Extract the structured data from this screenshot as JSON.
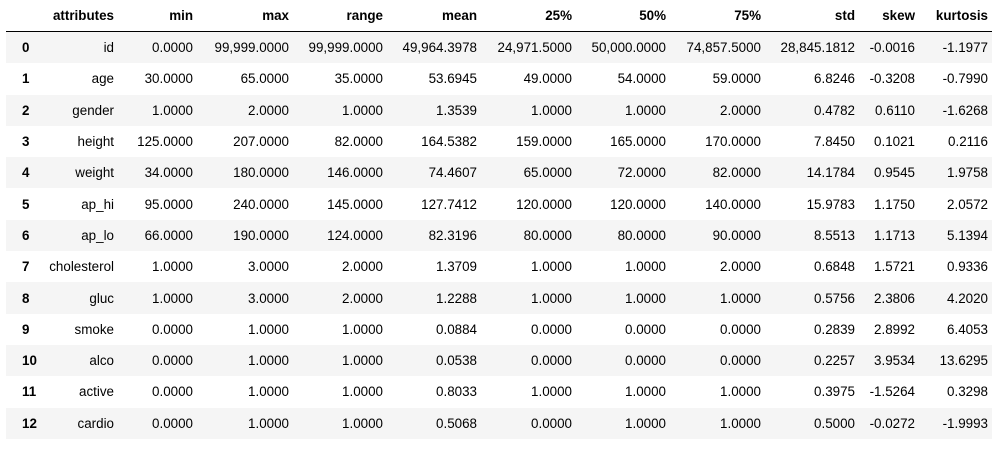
{
  "table": {
    "index_header": "",
    "headers": [
      "attributes",
      "min",
      "max",
      "range",
      "mean",
      "25%",
      "50%",
      "75%",
      "std",
      "skew",
      "kurtosis"
    ],
    "rows": [
      {
        "index": "0",
        "cells": [
          "id",
          "0.0000",
          "99,999.0000",
          "99,999.0000",
          "49,964.3978",
          "24,971.5000",
          "50,000.0000",
          "74,857.5000",
          "28,845.1812",
          "-0.0016",
          "-1.1977"
        ]
      },
      {
        "index": "1",
        "cells": [
          "age",
          "30.0000",
          "65.0000",
          "35.0000",
          "53.6945",
          "49.0000",
          "54.0000",
          "59.0000",
          "6.8246",
          "-0.3208",
          "-0.7990"
        ]
      },
      {
        "index": "2",
        "cells": [
          "gender",
          "1.0000",
          "2.0000",
          "1.0000",
          "1.3539",
          "1.0000",
          "1.0000",
          "2.0000",
          "0.4782",
          "0.6110",
          "-1.6268"
        ]
      },
      {
        "index": "3",
        "cells": [
          "height",
          "125.0000",
          "207.0000",
          "82.0000",
          "164.5382",
          "159.0000",
          "165.0000",
          "170.0000",
          "7.8450",
          "0.1021",
          "0.2116"
        ]
      },
      {
        "index": "4",
        "cells": [
          "weight",
          "34.0000",
          "180.0000",
          "146.0000",
          "74.4607",
          "65.0000",
          "72.0000",
          "82.0000",
          "14.1784",
          "0.9545",
          "1.9758"
        ]
      },
      {
        "index": "5",
        "cells": [
          "ap_hi",
          "95.0000",
          "240.0000",
          "145.0000",
          "127.7412",
          "120.0000",
          "120.0000",
          "140.0000",
          "15.9783",
          "1.1750",
          "2.0572"
        ]
      },
      {
        "index": "6",
        "cells": [
          "ap_lo",
          "66.0000",
          "190.0000",
          "124.0000",
          "82.3196",
          "80.0000",
          "80.0000",
          "90.0000",
          "8.5513",
          "1.1713",
          "5.1394"
        ]
      },
      {
        "index": "7",
        "cells": [
          "cholesterol",
          "1.0000",
          "3.0000",
          "2.0000",
          "1.3709",
          "1.0000",
          "1.0000",
          "2.0000",
          "0.6848",
          "1.5721",
          "0.9336"
        ]
      },
      {
        "index": "8",
        "cells": [
          "gluc",
          "1.0000",
          "3.0000",
          "2.0000",
          "1.2288",
          "1.0000",
          "1.0000",
          "1.0000",
          "0.5756",
          "2.3806",
          "4.2020"
        ]
      },
      {
        "index": "9",
        "cells": [
          "smoke",
          "0.0000",
          "1.0000",
          "1.0000",
          "0.0884",
          "0.0000",
          "0.0000",
          "0.0000",
          "0.2839",
          "2.8992",
          "6.4053"
        ]
      },
      {
        "index": "10",
        "cells": [
          "alco",
          "0.0000",
          "1.0000",
          "1.0000",
          "0.0538",
          "0.0000",
          "0.0000",
          "0.0000",
          "0.2257",
          "3.9534",
          "13.6295"
        ]
      },
      {
        "index": "11",
        "cells": [
          "active",
          "0.0000",
          "1.0000",
          "1.0000",
          "0.8033",
          "1.0000",
          "1.0000",
          "1.0000",
          "0.3975",
          "-1.5264",
          "0.3298"
        ]
      },
      {
        "index": "12",
        "cells": [
          "cardio",
          "0.0000",
          "1.0000",
          "1.0000",
          "0.5068",
          "0.0000",
          "1.0000",
          "1.0000",
          "0.5000",
          "-0.0272",
          "-1.9993"
        ]
      }
    ]
  },
  "colors": {
    "striped_row": "#f5f5f5",
    "plain_row": "#ffffff",
    "text": "#000000"
  }
}
